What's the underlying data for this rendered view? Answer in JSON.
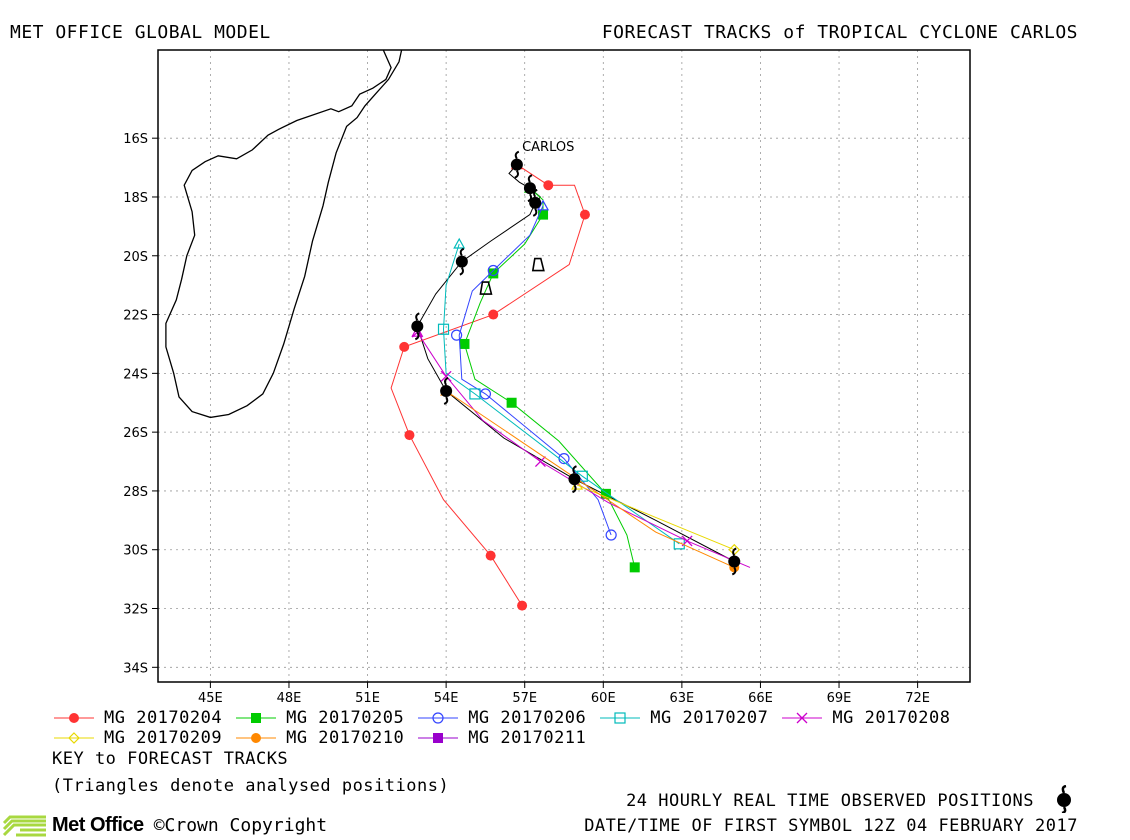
{
  "header": {
    "left": "MET OFFICE GLOBAL MODEL",
    "right": "FORECAST TRACKS of TROPICAL CYCLONE CARLOS"
  },
  "chart_data": {
    "type": "scatter",
    "title": "FORECAST TRACKS of TROPICAL CYCLONE CARLOS",
    "xlim": [
      43.0,
      74.0
    ],
    "ylim": [
      -34.5,
      -13.0
    ],
    "x_ticks": [
      45,
      48,
      51,
      54,
      57,
      60,
      63,
      66,
      69,
      72
    ],
    "x_tick_labels": [
      "45E",
      "48E",
      "51E",
      "54E",
      "57E",
      "60E",
      "63E",
      "66E",
      "69E",
      "72E"
    ],
    "y_ticks": [
      -16,
      -18,
      -20,
      -22,
      -24,
      -26,
      -28,
      -30,
      -32,
      -34
    ],
    "y_tick_labels": [
      "16S",
      "18S",
      "20S",
      "22S",
      "24S",
      "26S",
      "28S",
      "30S",
      "32S",
      "34S"
    ],
    "grid": true,
    "storm_label": {
      "text": "CARLOS",
      "lon": 56.9,
      "lat": -16.3
    },
    "coastline": [
      [
        [
          51.6,
          -13.0
        ],
        [
          51.9,
          -13.6
        ],
        [
          51.7,
          -14.0
        ],
        [
          51.2,
          -14.3
        ],
        [
          50.7,
          -14.5
        ],
        [
          50.4,
          -14.9
        ],
        [
          49.9,
          -15.1
        ],
        [
          49.6,
          -15.0
        ],
        [
          48.3,
          -15.4
        ],
        [
          47.6,
          -15.7
        ],
        [
          47.2,
          -15.9
        ],
        [
          46.6,
          -16.4
        ],
        [
          46.0,
          -16.7
        ],
        [
          45.3,
          -16.6
        ],
        [
          44.8,
          -16.8
        ],
        [
          44.3,
          -17.1
        ],
        [
          44.0,
          -17.6
        ],
        [
          44.3,
          -18.5
        ],
        [
          44.4,
          -19.3
        ],
        [
          44.1,
          -20.0
        ],
        [
          43.9,
          -20.8
        ],
        [
          43.7,
          -21.5
        ],
        [
          43.3,
          -22.3
        ],
        [
          43.3,
          -23.1
        ],
        [
          43.6,
          -24.0
        ],
        [
          43.8,
          -24.8
        ],
        [
          44.3,
          -25.3
        ],
        [
          45.0,
          -25.5
        ],
        [
          45.7,
          -25.4
        ],
        [
          46.4,
          -25.1
        ],
        [
          47.0,
          -24.7
        ],
        [
          47.4,
          -24.0
        ],
        [
          47.8,
          -23.0
        ],
        [
          48.2,
          -21.8
        ],
        [
          48.6,
          -20.7
        ],
        [
          48.9,
          -19.5
        ],
        [
          49.3,
          -18.3
        ],
        [
          49.5,
          -17.5
        ],
        [
          49.8,
          -16.5
        ],
        [
          50.2,
          -15.6
        ],
        [
          50.6,
          -15.3
        ],
        [
          50.9,
          -14.9
        ],
        [
          51.3,
          -14.5
        ],
        [
          51.8,
          -14.0
        ],
        [
          52.2,
          -13.4
        ],
        [
          52.3,
          -13.0
        ]
      ]
    ],
    "observed_positions": [
      {
        "lon": 56.7,
        "lat": -16.9
      },
      {
        "lon": 57.2,
        "lat": -17.7
      },
      {
        "lon": 57.4,
        "lat": -18.2
      },
      {
        "lon": 54.6,
        "lat": -20.2
      },
      {
        "lon": 52.9,
        "lat": -22.4
      },
      {
        "lon": 54.0,
        "lat": -24.6
      },
      {
        "lon": 58.9,
        "lat": -27.6
      },
      {
        "lon": 65.0,
        "lat": -30.4
      }
    ],
    "observed_track": [
      [
        56.7,
        -16.9
      ],
      [
        56.4,
        -17.2
      ],
      [
        56.8,
        -17.5
      ],
      [
        57.2,
        -17.7
      ],
      [
        57.6,
        -18.0
      ],
      [
        57.4,
        -18.2
      ],
      [
        57.2,
        -18.6
      ],
      [
        55.7,
        -19.5
      ],
      [
        54.6,
        -20.2
      ],
      [
        53.6,
        -21.3
      ],
      [
        52.9,
        -22.4
      ],
      [
        53.3,
        -23.5
      ],
      [
        54.0,
        -24.6
      ],
      [
        56.2,
        -26.2
      ],
      [
        58.9,
        -27.6
      ],
      [
        62.0,
        -29.0
      ],
      [
        65.0,
        -30.4
      ]
    ],
    "analysed_positions": [
      {
        "lon": 57.5,
        "lat": -20.3,
        "shape": "outline"
      },
      {
        "lon": 55.5,
        "lat": -21.1,
        "shape": "outline"
      }
    ],
    "series": [
      {
        "name": "MG 20170204",
        "color": "#ff3333",
        "marker": "filled-circle",
        "points": [
          [
            56.7,
            -16.9
          ],
          [
            57.9,
            -17.6
          ],
          [
            58.9,
            -17.6
          ],
          [
            59.3,
            -18.6
          ],
          [
            58.7,
            -20.3
          ],
          [
            55.8,
            -22.0
          ],
          [
            52.4,
            -23.1
          ],
          [
            51.9,
            -24.5
          ],
          [
            52.6,
            -26.1
          ],
          [
            53.9,
            -28.3
          ],
          [
            55.7,
            -30.2
          ],
          [
            56.9,
            -31.9
          ]
        ],
        "symbols": [
          [
            57.9,
            -17.6
          ],
          [
            59.3,
            -18.6
          ],
          [
            55.8,
            -22.0
          ],
          [
            52.4,
            -23.1
          ],
          [
            52.6,
            -26.1
          ],
          [
            55.7,
            -30.2
          ],
          [
            56.9,
            -31.9
          ]
        ]
      },
      {
        "name": "MG 20170205",
        "color": "#00cc00",
        "marker": "filled-square",
        "points": [
          [
            57.2,
            -17.7
          ],
          [
            57.7,
            -18.1
          ],
          [
            57.7,
            -18.6
          ],
          [
            57.0,
            -19.6
          ],
          [
            55.8,
            -20.6
          ],
          [
            55.3,
            -21.6
          ],
          [
            54.7,
            -23.0
          ],
          [
            55.1,
            -24.2
          ],
          [
            56.5,
            -25.0
          ],
          [
            58.3,
            -26.3
          ],
          [
            60.1,
            -28.1
          ],
          [
            60.9,
            -29.5
          ],
          [
            61.2,
            -30.6
          ]
        ],
        "symbols": [
          [
            57.7,
            -18.6
          ],
          [
            55.8,
            -20.6
          ],
          [
            54.7,
            -23.0
          ],
          [
            56.5,
            -25.0
          ],
          [
            60.1,
            -28.1
          ],
          [
            61.2,
            -30.6
          ]
        ]
      },
      {
        "name": "MG 20170206",
        "color": "#3344ff",
        "marker": "open-circle",
        "points": [
          [
            57.7,
            -18.3
          ],
          [
            57.2,
            -19.3
          ],
          [
            55.8,
            -20.5
          ],
          [
            55.0,
            -21.2
          ],
          [
            54.5,
            -22.7
          ],
          [
            54.6,
            -24.2
          ],
          [
            55.5,
            -24.7
          ],
          [
            58.5,
            -26.9
          ],
          [
            59.8,
            -28.3
          ],
          [
            60.3,
            -29.5
          ]
        ],
        "symbols": [
          [
            55.8,
            -20.5
          ],
          [
            54.4,
            -22.7
          ],
          [
            55.5,
            -24.7
          ],
          [
            58.5,
            -26.9
          ],
          [
            60.3,
            -29.5
          ]
        ]
      },
      {
        "name": "MG 20170207",
        "color": "#00bbbb",
        "marker": "open-square",
        "points": [
          [
            54.5,
            -19.6
          ],
          [
            54.0,
            -21.0
          ],
          [
            53.9,
            -22.5
          ],
          [
            54.0,
            -24.0
          ],
          [
            55.1,
            -24.7
          ],
          [
            59.2,
            -27.5
          ],
          [
            62.9,
            -29.8
          ]
        ],
        "symbols": [
          [
            53.9,
            -22.5
          ],
          [
            55.1,
            -24.7
          ],
          [
            59.2,
            -27.5
          ],
          [
            62.9,
            -29.8
          ]
        ]
      },
      {
        "name": "MG 20170208",
        "color": "#cc00cc",
        "marker": "cross",
        "points": [
          [
            52.9,
            -22.6
          ],
          [
            54.0,
            -24.1
          ],
          [
            55.4,
            -25.6
          ],
          [
            57.6,
            -27.0
          ],
          [
            60.2,
            -28.4
          ],
          [
            63.2,
            -29.7
          ],
          [
            65.6,
            -30.6
          ]
        ],
        "symbols": [
          [
            52.9,
            -22.6
          ],
          [
            54.0,
            -24.1
          ],
          [
            57.6,
            -27.0
          ],
          [
            63.2,
            -29.7
          ]
        ]
      },
      {
        "name": "MG 20170209",
        "color": "#e8d800",
        "marker": "diamond",
        "points": [
          [
            59.0,
            -27.8
          ],
          [
            62.0,
            -28.9
          ],
          [
            65.0,
            -30.0
          ]
        ],
        "symbols": [
          [
            65.0,
            -30.0
          ]
        ]
      },
      {
        "name": "MG 20170210",
        "color": "#ff8800",
        "marker": "filled-circle",
        "points": [
          [
            54.0,
            -24.6
          ],
          [
            57.0,
            -26.4
          ],
          [
            59.0,
            -27.6
          ],
          [
            62.0,
            -29.4
          ],
          [
            65.0,
            -30.6
          ]
        ],
        "symbols": [
          [
            65.0,
            -30.6
          ]
        ]
      },
      {
        "name": "MG 20170211",
        "color": "#9900cc",
        "marker": "filled-square",
        "points": [],
        "symbols": []
      }
    ]
  },
  "legend_rows": [
    [
      0,
      1,
      2,
      3,
      4
    ],
    [
      5,
      6,
      7
    ]
  ],
  "notes": {
    "key": "KEY to FORECAST TRACKS",
    "triangles": "(Triangles denote analysed positions)",
    "observed": "24 HOURLY REAL TIME OBSERVED POSITIONS",
    "datetime": "DATE/TIME OF FIRST SYMBOL 12Z 04 FEBRUARY 2017"
  },
  "footer": {
    "logo": "Met Office",
    "copyright": "©Crown Copyright"
  }
}
